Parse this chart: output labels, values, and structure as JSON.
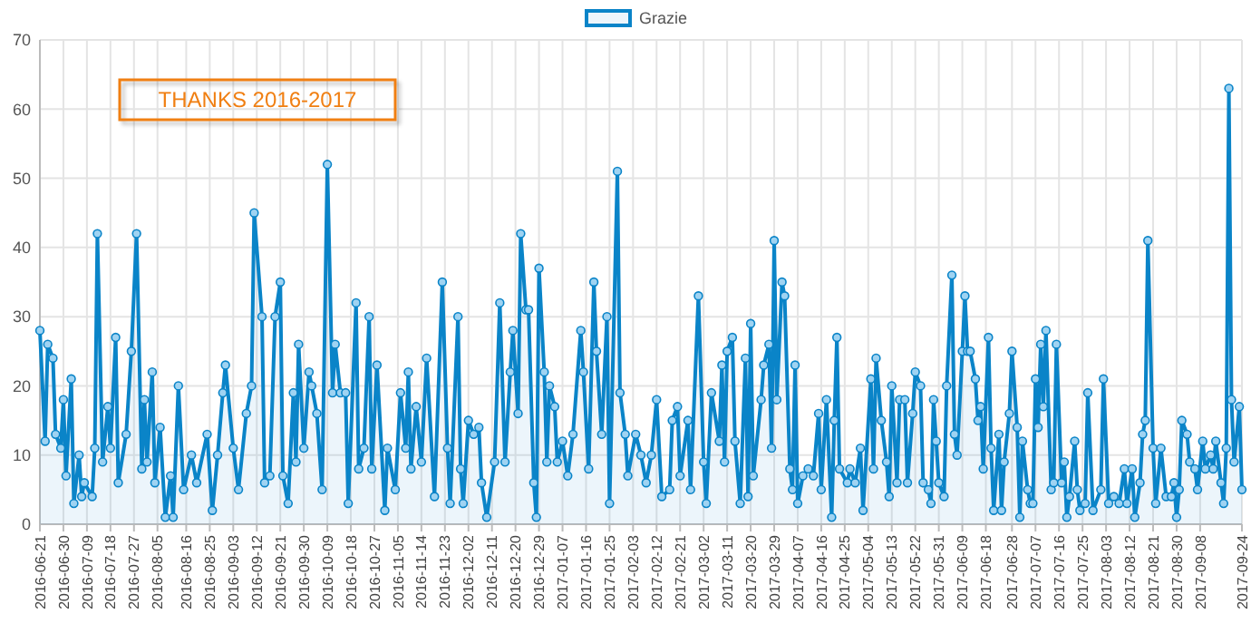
{
  "chart_data": {
    "type": "area",
    "annotations": [
      "THANKS 2016-2017"
    ],
    "legend": "top",
    "grid": true,
    "marker": "circle",
    "xlim": [
      "2016-06-21",
      "2017-09-24"
    ],
    "xticks": [
      "2016-06-21",
      "2016-06-30",
      "2016-07-09",
      "2016-07-18",
      "2016-07-27",
      "2016-08-05",
      "2016-08-16",
      "2016-08-25",
      "2016-09-03",
      "2016-09-12",
      "2016-09-21",
      "2016-09-30",
      "2016-10-09",
      "2016-10-18",
      "2016-10-27",
      "2016-11-05",
      "2016-11-14",
      "2016-11-23",
      "2016-12-02",
      "2016-12-11",
      "2016-12-20",
      "2016-12-29",
      "2017-01-07",
      "2017-01-16",
      "2017-01-25",
      "2017-02-03",
      "2017-02-12",
      "2017-02-21",
      "2017-03-02",
      "2017-03-11",
      "2017-03-20",
      "2017-03-29",
      "2017-04-07",
      "2017-04-16",
      "2017-04-25",
      "2017-05-04",
      "2017-05-13",
      "2017-05-22",
      "2017-05-31",
      "2017-06-09",
      "2017-06-18",
      "2017-06-28",
      "2017-07-07",
      "2017-07-16",
      "2017-07-25",
      "2017-08-03",
      "2017-08-12",
      "2017-08-21",
      "2017-08-30",
      "2017-09-08",
      "2017-09-24"
    ],
    "ylim": [
      0,
      70
    ],
    "yticks": [
      0,
      10,
      20,
      30,
      40,
      50,
      60,
      70
    ],
    "x": [
      "2016-06-21",
      "2016-06-23",
      "2016-06-24",
      "2016-06-26",
      "2016-06-27",
      "2016-06-29",
      "2016-06-30",
      "2016-07-01",
      "2016-07-03",
      "2016-07-04",
      "2016-07-06",
      "2016-07-07",
      "2016-07-08",
      "2016-07-11",
      "2016-07-12",
      "2016-07-13",
      "2016-07-15",
      "2016-07-17",
      "2016-07-18",
      "2016-07-20",
      "2016-07-21",
      "2016-07-24",
      "2016-07-26",
      "2016-07-28",
      "2016-07-30",
      "2016-07-31",
      "2016-08-01",
      "2016-08-03",
      "2016-08-04",
      "2016-08-06",
      "2016-08-08",
      "2016-08-10",
      "2016-08-11",
      "2016-08-13",
      "2016-08-15",
      "2016-08-18",
      "2016-08-20",
      "2016-08-24",
      "2016-08-26",
      "2016-08-28",
      "2016-08-30",
      "2016-08-31",
      "2016-09-03",
      "2016-09-05",
      "2016-09-08",
      "2016-09-10",
      "2016-09-11",
      "2016-09-14",
      "2016-09-15",
      "2016-09-17",
      "2016-09-19",
      "2016-09-21",
      "2016-09-22",
      "2016-09-24",
      "2016-09-26",
      "2016-09-27",
      "2016-09-28",
      "2016-09-30",
      "2016-10-02",
      "2016-10-03",
      "2016-10-05",
      "2016-10-07",
      "2016-10-09",
      "2016-10-11",
      "2016-10-12",
      "2016-10-14",
      "2016-10-16",
      "2016-10-17",
      "2016-10-20",
      "2016-10-21",
      "2016-10-23",
      "2016-10-25",
      "2016-10-26",
      "2016-10-28",
      "2016-10-31",
      "2016-11-01",
      "2016-11-04",
      "2016-11-06",
      "2016-11-08",
      "2016-11-09",
      "2016-11-10",
      "2016-11-12",
      "2016-11-14",
      "2016-11-16",
      "2016-11-19",
      "2016-11-22",
      "2016-11-24",
      "2016-11-25",
      "2016-11-28",
      "2016-11-29",
      "2016-11-30",
      "2016-12-02",
      "2016-12-04",
      "2016-12-06",
      "2016-12-07",
      "2016-12-09",
      "2016-12-12",
      "2016-12-14",
      "2016-12-16",
      "2016-12-18",
      "2016-12-19",
      "2016-12-21",
      "2016-12-22",
      "2016-12-24",
      "2016-12-25",
      "2016-12-27",
      "2016-12-28",
      "2016-12-29",
      "2016-12-31",
      "2017-01-01",
      "2017-01-02",
      "2017-01-04",
      "2017-01-05",
      "2017-01-07",
      "2017-01-09",
      "2017-01-11",
      "2017-01-14",
      "2017-01-15",
      "2017-01-17",
      "2017-01-19",
      "2017-01-20",
      "2017-01-22",
      "2017-01-24",
      "2017-01-25",
      "2017-01-28",
      "2017-01-29",
      "2017-01-31",
      "2017-02-01",
      "2017-02-04",
      "2017-02-06",
      "2017-02-08",
      "2017-02-10",
      "2017-02-12",
      "2017-02-14",
      "2017-02-17",
      "2017-02-18",
      "2017-02-20",
      "2017-02-21",
      "2017-02-24",
      "2017-02-25",
      "2017-02-28",
      "2017-03-02",
      "2017-03-03",
      "2017-03-05",
      "2017-03-08",
      "2017-03-09",
      "2017-03-10",
      "2017-03-11",
      "2017-03-13",
      "2017-03-14",
      "2017-03-16",
      "2017-03-18",
      "2017-03-19",
      "2017-03-20",
      "2017-03-21",
      "2017-03-24",
      "2017-03-25",
      "2017-03-27",
      "2017-03-28",
      "2017-03-29",
      "2017-03-30",
      "2017-04-01",
      "2017-04-02",
      "2017-04-04",
      "2017-04-05",
      "2017-04-06",
      "2017-04-07",
      "2017-04-09",
      "2017-04-11",
      "2017-04-13",
      "2017-04-15",
      "2017-04-16",
      "2017-04-18",
      "2017-04-20",
      "2017-04-21",
      "2017-04-22",
      "2017-04-23",
      "2017-04-26",
      "2017-04-27",
      "2017-04-29",
      "2017-05-01",
      "2017-05-02",
      "2017-05-05",
      "2017-05-06",
      "2017-05-07",
      "2017-05-09",
      "2017-05-11",
      "2017-05-12",
      "2017-05-13",
      "2017-05-15",
      "2017-05-16",
      "2017-05-18",
      "2017-05-19",
      "2017-05-21",
      "2017-05-22",
      "2017-05-24",
      "2017-05-25",
      "2017-05-27",
      "2017-05-28",
      "2017-05-29",
      "2017-05-30",
      "2017-05-31",
      "2017-06-02",
      "2017-06-03",
      "2017-06-05",
      "2017-06-06",
      "2017-06-07",
      "2017-06-09",
      "2017-06-10",
      "2017-06-11",
      "2017-06-12",
      "2017-06-14",
      "2017-06-15",
      "2017-06-16",
      "2017-06-17",
      "2017-06-19",
      "2017-06-20",
      "2017-06-21",
      "2017-06-23",
      "2017-06-24",
      "2017-06-25",
      "2017-06-27",
      "2017-06-28",
      "2017-06-30",
      "2017-07-01",
      "2017-07-02",
      "2017-07-04",
      "2017-07-05",
      "2017-07-06",
      "2017-07-07",
      "2017-07-08",
      "2017-07-09",
      "2017-07-10",
      "2017-07-11",
      "2017-07-13",
      "2017-07-14",
      "2017-07-15",
      "2017-07-17",
      "2017-07-18",
      "2017-07-19",
      "2017-07-20",
      "2017-07-22",
      "2017-07-23",
      "2017-07-24",
      "2017-07-26",
      "2017-07-27",
      "2017-07-29",
      "2017-08-01",
      "2017-08-02",
      "2017-08-04",
      "2017-08-06",
      "2017-08-08",
      "2017-08-10",
      "2017-08-11",
      "2017-08-13",
      "2017-08-14",
      "2017-08-16",
      "2017-08-17",
      "2017-08-18",
      "2017-08-19",
      "2017-08-21",
      "2017-08-22",
      "2017-08-24",
      "2017-08-26",
      "2017-08-28",
      "2017-08-29",
      "2017-08-30",
      "2017-08-31",
      "2017-09-01",
      "2017-09-03",
      "2017-09-04",
      "2017-09-06",
      "2017-09-07",
      "2017-09-09",
      "2017-09-10",
      "2017-09-12",
      "2017-09-13",
      "2017-09-14",
      "2017-09-16",
      "2017-09-17",
      "2017-09-18",
      "2017-09-19",
      "2017-09-20",
      "2017-09-21",
      "2017-09-23",
      "2017-09-24"
    ],
    "series": [
      {
        "name": "Grazie",
        "color": "#0a84c8",
        "values": [
          28,
          12,
          26,
          24,
          13,
          11,
          18,
          7,
          21,
          3,
          10,
          4,
          6,
          4,
          11,
          42,
          9,
          17,
          11,
          27,
          6,
          13,
          25,
          42,
          8,
          18,
          9,
          22,
          6,
          14,
          1,
          7,
          1,
          20,
          5,
          10,
          6,
          13,
          2,
          10,
          19,
          23,
          11,
          5,
          16,
          20,
          45,
          30,
          6,
          7,
          30,
          35,
          7,
          3,
          19,
          9,
          26,
          11,
          22,
          20,
          16,
          5,
          52,
          19,
          26,
          19,
          19,
          3,
          32,
          8,
          11,
          30,
          8,
          23,
          2,
          11,
          5,
          19,
          11,
          22,
          8,
          17,
          9,
          24,
          4,
          35,
          11,
          3,
          30,
          8,
          3,
          15,
          13,
          14,
          6,
          1,
          9,
          32,
          9,
          22,
          28,
          16,
          42,
          31,
          31,
          6,
          1,
          37,
          22,
          9,
          20,
          17,
          9,
          12,
          7,
          13,
          28,
          22,
          8,
          35,
          25,
          13,
          30,
          3,
          51,
          19,
          13,
          7,
          13,
          10,
          6,
          10,
          18,
          4,
          5,
          15,
          17,
          7,
          15,
          5,
          33,
          9,
          3,
          19,
          12,
          23,
          9,
          25,
          27,
          12,
          3,
          24,
          4,
          29,
          7,
          18,
          23,
          26,
          11,
          41,
          18,
          35,
          33,
          8,
          5,
          23,
          3,
          7,
          8,
          7,
          16,
          5,
          18,
          1,
          15,
          27,
          8,
          6,
          8,
          6,
          11,
          2,
          21,
          8,
          24,
          15,
          9,
          4,
          20,
          6,
          18,
          18,
          6,
          16,
          22,
          20,
          6,
          5,
          3,
          18,
          12,
          6,
          4,
          20,
          36,
          13,
          10,
          25,
          33,
          25,
          25,
          21,
          15,
          17,
          8,
          27,
          11,
          2,
          13,
          2,
          9,
          16,
          25,
          14,
          1,
          12,
          5,
          3,
          3,
          21,
          14,
          26,
          17,
          28,
          5,
          6,
          26,
          6,
          9,
          1,
          4,
          12,
          5,
          2,
          3,
          19,
          2,
          5,
          21,
          3,
          4,
          3,
          8,
          3,
          8,
          1,
          6,
          13,
          15,
          41,
          11,
          3,
          11,
          4,
          4,
          6,
          1,
          5,
          15,
          13,
          9,
          8,
          5,
          12,
          8,
          10,
          8,
          12,
          6,
          3,
          11,
          63,
          18,
          9,
          17,
          5
        ]
      }
    ]
  }
}
